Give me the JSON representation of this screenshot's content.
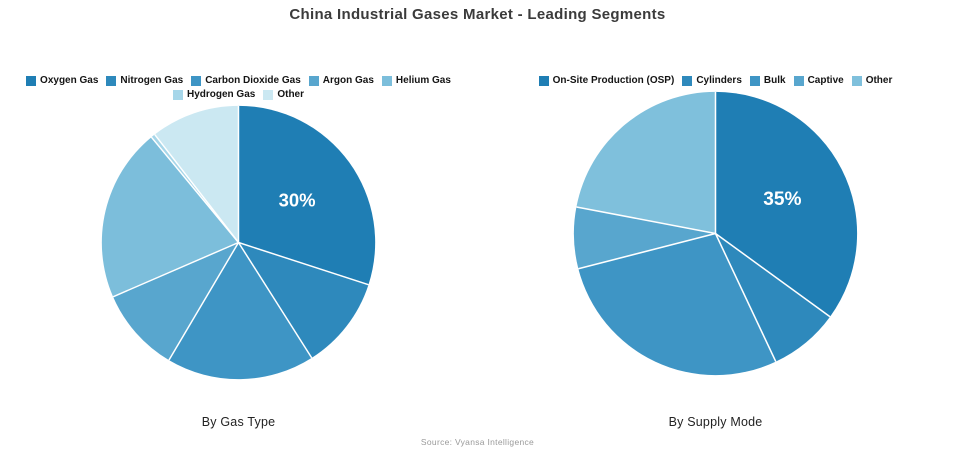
{
  "page_title": "China Industrial Gases Market - Leading Segments",
  "source": "Source: Vyansa Intelligence",
  "chart_data": [
    {
      "type": "pie",
      "title": "By Gas Type",
      "labels": [
        "Oxygen Gas",
        "Nitrogen Gas",
        "Carbon Dioxide Gas",
        "Argon Gas",
        "Helium Gas",
        "Hydrogen Gas",
        "Other"
      ],
      "values": [
        30,
        11,
        17.5,
        10,
        20.5,
        0.5,
        10.5
      ],
      "colors": [
        "#1f7eb4",
        "#2e89bc",
        "#3e95c5",
        "#58a6ce",
        "#7cbedb",
        "#a6d6e9",
        "#cbe8f2"
      ],
      "slice_labels": [
        "30%",
        "",
        "",
        "",
        "",
        "",
        ""
      ],
      "legend_position": "top",
      "start_angle_deg": 0,
      "direction": "clockwise",
      "separator_color": "#ffffff"
    },
    {
      "type": "pie",
      "title": "By Supply Mode",
      "labels": [
        "On-Site Production (OSP)",
        "Cylinders",
        "Bulk",
        "Captive",
        "Other"
      ],
      "values": [
        35,
        8,
        28,
        7,
        22
      ],
      "colors": [
        "#1f7eb4",
        "#2e89bc",
        "#3e95c5",
        "#58a6ce",
        "#7fc0dc"
      ],
      "slice_labels": [
        "35%",
        "",
        "",
        "",
        ""
      ],
      "legend_position": "top",
      "start_angle_deg": 0,
      "direction": "clockwise",
      "separator_color": "#ffffff"
    }
  ]
}
